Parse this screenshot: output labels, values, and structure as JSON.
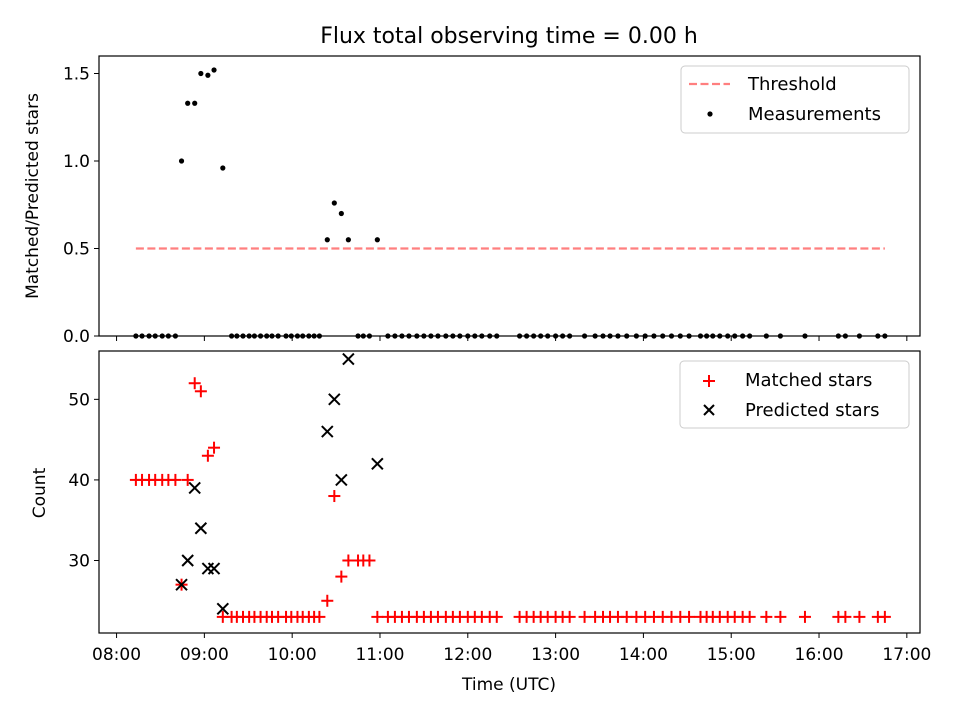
{
  "chart_data": [
    {
      "type": "scatter",
      "title": "Flux total observing time = 0.00 h",
      "xlabel": "",
      "ylabel": "Matched/Predicted stars",
      "ylim": [
        0,
        1.6
      ],
      "yticks": [
        0.0,
        0.5,
        1.0,
        1.5
      ],
      "ytick_labels": [
        "0.0",
        "0.5",
        "1.0",
        "1.5"
      ],
      "legend": {
        "placement": "top-right",
        "entries": [
          "Threshold",
          "Measurements"
        ]
      },
      "threshold": {
        "name": "Threshold",
        "value": 0.5,
        "x_start": 8.22,
        "x_end": 16.75,
        "color": "#ff7f7f"
      },
      "series": [
        {
          "name": "Measurements",
          "marker": "dot",
          "color": "#000000",
          "points": [
            [
              8.22,
              0
            ],
            [
              8.29,
              0
            ],
            [
              8.37,
              0
            ],
            [
              8.44,
              0
            ],
            [
              8.52,
              0
            ],
            [
              8.59,
              0
            ],
            [
              8.67,
              0
            ],
            [
              8.74,
              1.0
            ],
            [
              8.81,
              1.33
            ],
            [
              8.89,
              1.33
            ],
            [
              8.96,
              1.5
            ],
            [
              9.04,
              1.49
            ],
            [
              9.11,
              1.52
            ],
            [
              9.21,
              0.96
            ],
            [
              9.31,
              0
            ],
            [
              9.37,
              0
            ],
            [
              9.44,
              0
            ],
            [
              9.51,
              0
            ],
            [
              9.57,
              0
            ],
            [
              9.64,
              0
            ],
            [
              9.71,
              0
            ],
            [
              9.77,
              0
            ],
            [
              9.84,
              0
            ],
            [
              9.93,
              0
            ],
            [
              9.99,
              0
            ],
            [
              10.06,
              0
            ],
            [
              10.12,
              0
            ],
            [
              10.19,
              0
            ],
            [
              10.25,
              0
            ],
            [
              10.31,
              0
            ],
            [
              10.4,
              0.55
            ],
            [
              10.48,
              0.76
            ],
            [
              10.56,
              0.7
            ],
            [
              10.64,
              0.55
            ],
            [
              10.75,
              0
            ],
            [
              10.81,
              0
            ],
            [
              10.88,
              0
            ],
            [
              10.97,
              0.55
            ],
            [
              11.09,
              0
            ],
            [
              11.17,
              0
            ],
            [
              11.25,
              0
            ],
            [
              11.33,
              0
            ],
            [
              11.42,
              0
            ],
            [
              11.5,
              0
            ],
            [
              11.58,
              0
            ],
            [
              11.66,
              0
            ],
            [
              11.75,
              0
            ],
            [
              11.83,
              0
            ],
            [
              11.91,
              0
            ],
            [
              12.0,
              0
            ],
            [
              12.08,
              0
            ],
            [
              12.16,
              0
            ],
            [
              12.25,
              0
            ],
            [
              12.33,
              0
            ],
            [
              12.59,
              0
            ],
            [
              12.67,
              0
            ],
            [
              12.75,
              0
            ],
            [
              12.83,
              0
            ],
            [
              12.91,
              0
            ],
            [
              13.0,
              0
            ],
            [
              13.08,
              0
            ],
            [
              13.16,
              0
            ],
            [
              13.33,
              0
            ],
            [
              13.45,
              0
            ],
            [
              13.54,
              0
            ],
            [
              13.62,
              0
            ],
            [
              13.71,
              0
            ],
            [
              13.81,
              0
            ],
            [
              13.92,
              0
            ],
            [
              14.02,
              0
            ],
            [
              14.12,
              0
            ],
            [
              14.22,
              0
            ],
            [
              14.32,
              0
            ],
            [
              14.42,
              0
            ],
            [
              14.52,
              0
            ],
            [
              14.65,
              0
            ],
            [
              14.72,
              0
            ],
            [
              14.79,
              0
            ],
            [
              14.87,
              0
            ],
            [
              14.96,
              0
            ],
            [
              15.04,
              0
            ],
            [
              15.13,
              0
            ],
            [
              15.21,
              0
            ],
            [
              15.4,
              0
            ],
            [
              15.56,
              0
            ],
            [
              15.84,
              0
            ],
            [
              16.22,
              0
            ],
            [
              16.3,
              0
            ],
            [
              16.46,
              0
            ],
            [
              16.67,
              0
            ],
            [
              16.75,
              0
            ]
          ]
        }
      ]
    },
    {
      "type": "scatter",
      "title": "",
      "xlabel": "Time (UTC)",
      "ylabel": "Count",
      "xlim": [
        7.8,
        17.15
      ],
      "ylim": [
        21,
        56
      ],
      "xticks": [
        8,
        9,
        10,
        11,
        12,
        13,
        14,
        15,
        16,
        17
      ],
      "xtick_labels": [
        "08:00",
        "09:00",
        "10:00",
        "11:00",
        "12:00",
        "13:00",
        "14:00",
        "15:00",
        "16:00",
        "17:00"
      ],
      "yticks": [
        30,
        40,
        50
      ],
      "ytick_labels": [
        "30",
        "40",
        "50"
      ],
      "legend": {
        "placement": "top-right",
        "entries": [
          "Matched stars",
          "Predicted stars"
        ]
      },
      "series": [
        {
          "name": "Matched stars",
          "marker": "plus",
          "color": "#ff0000",
          "points": [
            [
              8.22,
              40
            ],
            [
              8.29,
              40
            ],
            [
              8.37,
              40
            ],
            [
              8.44,
              40
            ],
            [
              8.52,
              40
            ],
            [
              8.59,
              40
            ],
            [
              8.67,
              40
            ],
            [
              8.74,
              27
            ],
            [
              8.81,
              40
            ],
            [
              8.89,
              52
            ],
            [
              8.96,
              51
            ],
            [
              9.04,
              43
            ],
            [
              9.11,
              44
            ],
            [
              9.21,
              23
            ],
            [
              9.31,
              23
            ],
            [
              9.37,
              23
            ],
            [
              9.44,
              23
            ],
            [
              9.51,
              23
            ],
            [
              9.57,
              23
            ],
            [
              9.64,
              23
            ],
            [
              9.71,
              23
            ],
            [
              9.77,
              23
            ],
            [
              9.84,
              23
            ],
            [
              9.93,
              23
            ],
            [
              9.99,
              23
            ],
            [
              10.06,
              23
            ],
            [
              10.12,
              23
            ],
            [
              10.19,
              23
            ],
            [
              10.25,
              23
            ],
            [
              10.31,
              23
            ],
            [
              10.4,
              25
            ],
            [
              10.48,
              38
            ],
            [
              10.56,
              28
            ],
            [
              10.64,
              30
            ],
            [
              10.75,
              30
            ],
            [
              10.81,
              30
            ],
            [
              10.88,
              30
            ],
            [
              10.97,
              23
            ],
            [
              11.09,
              23
            ],
            [
              11.17,
              23
            ],
            [
              11.25,
              23
            ],
            [
              11.33,
              23
            ],
            [
              11.42,
              23
            ],
            [
              11.5,
              23
            ],
            [
              11.58,
              23
            ],
            [
              11.66,
              23
            ],
            [
              11.75,
              23
            ],
            [
              11.83,
              23
            ],
            [
              11.91,
              23
            ],
            [
              12.0,
              23
            ],
            [
              12.08,
              23
            ],
            [
              12.16,
              23
            ],
            [
              12.25,
              23
            ],
            [
              12.33,
              23
            ],
            [
              12.59,
              23
            ],
            [
              12.67,
              23
            ],
            [
              12.75,
              23
            ],
            [
              12.83,
              23
            ],
            [
              12.91,
              23
            ],
            [
              13.0,
              23
            ],
            [
              13.08,
              23
            ],
            [
              13.16,
              23
            ],
            [
              13.33,
              23
            ],
            [
              13.45,
              23
            ],
            [
              13.54,
              23
            ],
            [
              13.62,
              23
            ],
            [
              13.71,
              23
            ],
            [
              13.81,
              23
            ],
            [
              13.92,
              23
            ],
            [
              14.02,
              23
            ],
            [
              14.12,
              23
            ],
            [
              14.22,
              23
            ],
            [
              14.32,
              23
            ],
            [
              14.42,
              23
            ],
            [
              14.52,
              23
            ],
            [
              14.65,
              23
            ],
            [
              14.72,
              23
            ],
            [
              14.79,
              23
            ],
            [
              14.87,
              23
            ],
            [
              14.96,
              23
            ],
            [
              15.04,
              23
            ],
            [
              15.13,
              23
            ],
            [
              15.21,
              23
            ],
            [
              15.4,
              23
            ],
            [
              15.56,
              23
            ],
            [
              15.84,
              23
            ],
            [
              16.22,
              23
            ],
            [
              16.3,
              23
            ],
            [
              16.46,
              23
            ],
            [
              16.67,
              23
            ],
            [
              16.75,
              23
            ]
          ]
        },
        {
          "name": "Predicted stars",
          "marker": "x",
          "color": "#000000",
          "points": [
            [
              8.74,
              27
            ],
            [
              8.81,
              30
            ],
            [
              8.89,
              39
            ],
            [
              8.96,
              34
            ],
            [
              9.04,
              29
            ],
            [
              9.11,
              29
            ],
            [
              9.21,
              24
            ],
            [
              10.4,
              46
            ],
            [
              10.48,
              50
            ],
            [
              10.56,
              40
            ],
            [
              10.64,
              55
            ],
            [
              10.97,
              42
            ]
          ]
        }
      ]
    }
  ]
}
